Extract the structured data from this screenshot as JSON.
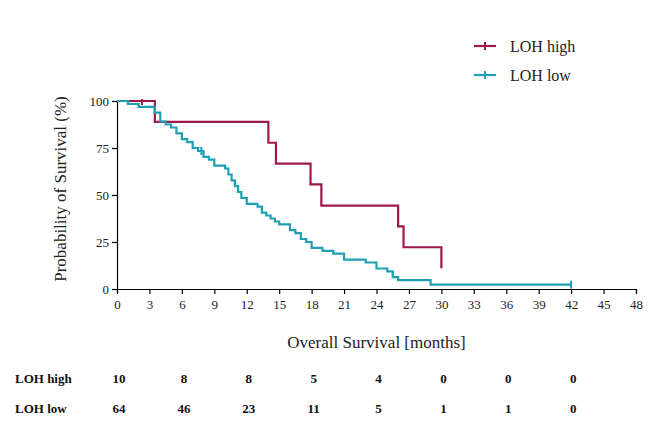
{
  "chart_data": {
    "type": "step",
    "x_label": "Overall Survival [months]",
    "y_label": "Probability of Survival (%)",
    "xlim": [
      0,
      48
    ],
    "xticks": [
      0,
      3,
      6,
      9,
      12,
      15,
      18,
      21,
      24,
      27,
      30,
      33,
      36,
      39,
      42,
      45,
      48
    ],
    "ylim": [
      0,
      100
    ],
    "yticks": [
      0,
      25,
      50,
      75,
      100
    ],
    "legend": "top-right",
    "marker": "censor-tick",
    "series": [
      {
        "name": "LOH high",
        "color": "#a0174c",
        "x": [
          0,
          3.5,
          14,
          14.7,
          17.9,
          18.9,
          26,
          26.5,
          30
        ],
        "values": [
          100,
          88.9,
          77.8,
          66.7,
          55.6,
          44.4,
          33.3,
          22.2,
          11.1
        ],
        "censored_x": [
          2.3
        ],
        "censored_y": [
          100
        ]
      },
      {
        "name": "LOH low",
        "color": "#1e9fb4",
        "x": [
          0,
          1.0,
          2.0,
          3.5,
          4.0,
          4.5,
          5.0,
          5.5,
          6.0,
          6.5,
          7.0,
          7.5,
          8.0,
          8.5,
          9.0,
          10.0,
          10.3,
          10.6,
          10.9,
          11.2,
          11.5,
          12.0,
          13.0,
          13.4,
          13.8,
          14.2,
          14.6,
          15.0,
          16.0,
          16.5,
          17.0,
          17.5,
          18.0,
          19.0,
          20.0,
          21.0,
          23.0,
          24.0,
          25.0,
          25.5,
          26.0,
          29.0,
          42.0
        ],
        "values": [
          100,
          98.4,
          96.9,
          93.8,
          89.1,
          87.5,
          85.9,
          82.8,
          79.7,
          78.1,
          75.0,
          73.4,
          70.3,
          68.8,
          65.6,
          64.1,
          60.9,
          57.8,
          54.7,
          51.6,
          48.4,
          45.3,
          43.8,
          40.6,
          39.1,
          37.5,
          35.9,
          34.4,
          31.3,
          29.7,
          26.6,
          25.0,
          21.9,
          20.3,
          18.8,
          15.6,
          14.1,
          10.9,
          9.4,
          6.3,
          4.7,
          2.3,
          2.3
        ],
        "censored_x": [
          7.8,
          42
        ],
        "censored_y": [
          73.4,
          2.3
        ]
      }
    ],
    "risk_table": {
      "x": [
        0,
        6,
        12,
        18,
        24,
        30,
        36,
        42
      ],
      "rows": [
        {
          "name": "LOH high",
          "values": [
            10,
            8,
            8,
            5,
            4,
            0,
            0,
            0
          ]
        },
        {
          "name": "LOH low",
          "values": [
            64,
            46,
            23,
            11,
            5,
            1,
            1,
            0
          ]
        }
      ]
    }
  }
}
